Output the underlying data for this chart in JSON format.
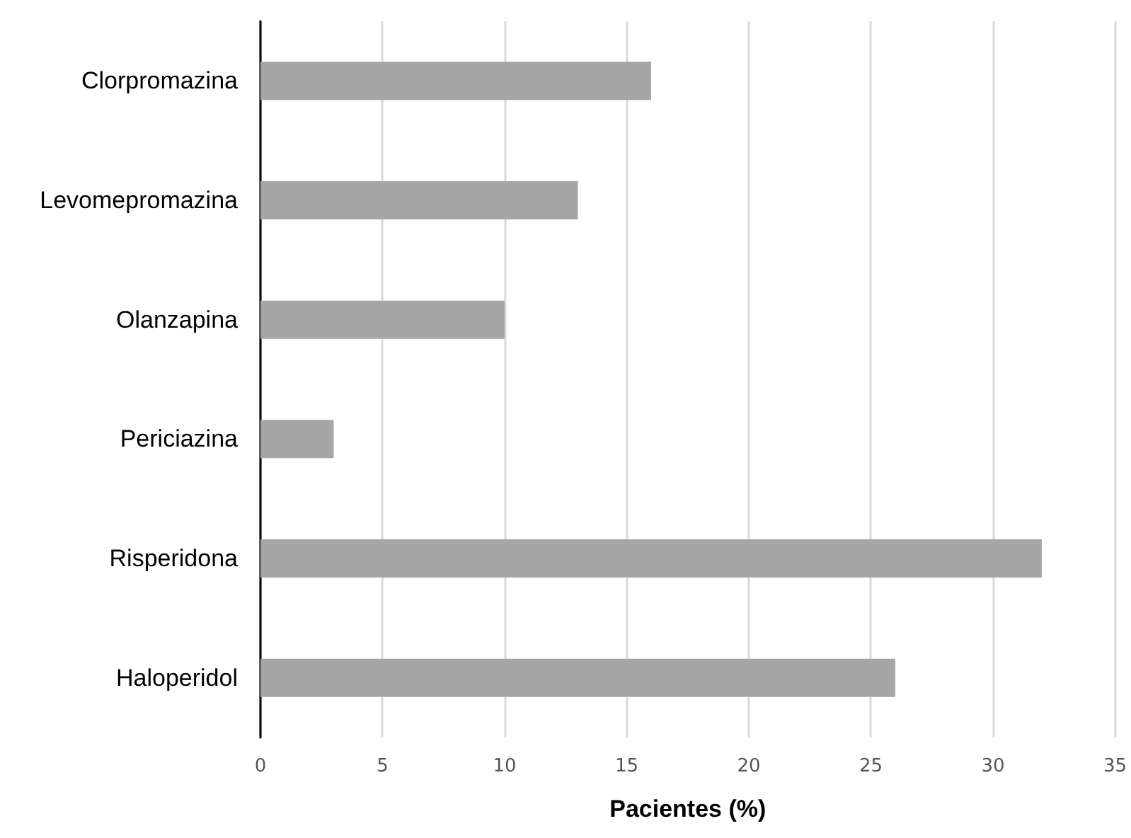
{
  "chart_data": {
    "type": "bar",
    "orientation": "horizontal",
    "xlabel": "Pacientes (%)",
    "categories": [
      "Clorpromazina",
      "Levomepromazina",
      "Olanzapina",
      "Periciazina",
      "Risperidona",
      "Haloperidol"
    ],
    "values": [
      16,
      13,
      10,
      3,
      32,
      26
    ],
    "color": "#a6a6a6",
    "xlim": [
      0,
      35
    ],
    "xticks": [
      0,
      5,
      10,
      15,
      20,
      25,
      30,
      35
    ],
    "grid": "x"
  }
}
